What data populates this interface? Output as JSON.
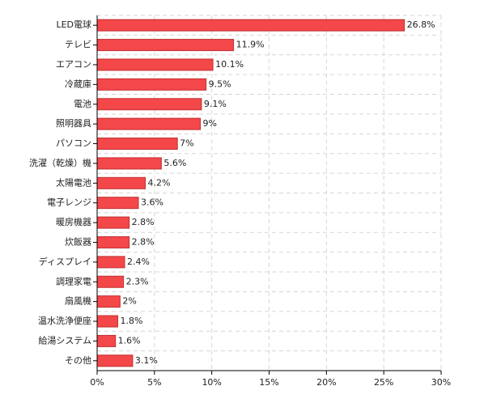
{
  "chart_data": {
    "type": "hbar",
    "categories": [
      "LED電球",
      "テレビ",
      "エアコン",
      "冷蔵庫",
      "電池",
      "照明器具",
      "パソコン",
      "洗濯（乾燥）機",
      "太陽電池",
      "電子レンジ",
      "暖房機器",
      "炊飯器",
      "ディスプレイ",
      "調理家電",
      "扇風機",
      "温水洗浄便座",
      "給湯システム",
      "その他"
    ],
    "values": [
      26.8,
      11.9,
      10.1,
      9.5,
      9.1,
      9,
      7,
      5.6,
      4.2,
      3.6,
      2.8,
      2.8,
      2.4,
      2.3,
      2,
      1.8,
      1.6,
      3.1
    ],
    "value_labels": [
      "26.8%",
      "11.9%",
      "10.1%",
      "9.5%",
      "9.1%",
      "9%",
      "7%",
      "5.6%",
      "4.2%",
      "3.6%",
      "2.8%",
      "2.8%",
      "2.4%",
      "2.3%",
      "2%",
      "1.8%",
      "1.6%",
      "3.1%"
    ],
    "color": "#f4474a",
    "xlim": [
      0,
      30
    ],
    "xticks": [
      {
        "value": 0,
        "label": "0%"
      },
      {
        "value": 5,
        "label": "5%"
      },
      {
        "value": 10,
        "label": "10%"
      },
      {
        "value": 15,
        "label": "15%"
      },
      {
        "value": 20,
        "label": "20%"
      },
      {
        "value": 25,
        "label": "25%"
      },
      {
        "value": 30,
        "label": "30%"
      }
    ],
    "grid": true
  }
}
